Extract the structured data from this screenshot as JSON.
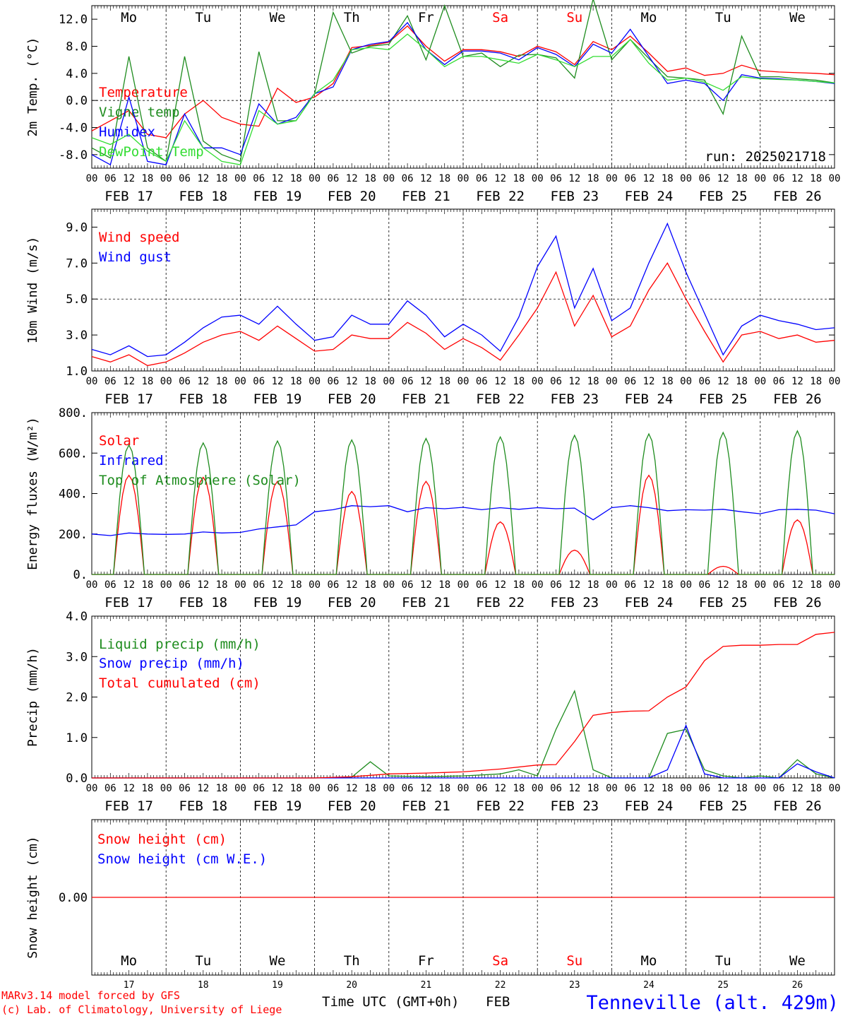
{
  "colors": {
    "red": "#ff0000",
    "green": "#1e8c1e",
    "blue": "#0000ff",
    "lightgreen": "#33dd33",
    "axis": "#000000",
    "grid": "#000000"
  },
  "days": {
    "weekday_labels": [
      "Mo",
      "Tu",
      "We",
      "Th",
      "Fr",
      "Sa",
      "Su",
      "Mo",
      "Tu",
      "We"
    ],
    "weekend_flags": [
      false,
      false,
      false,
      false,
      false,
      true,
      true,
      false,
      false,
      false
    ],
    "date_labels": [
      "FEB 17",
      "FEB 18",
      "FEB 19",
      "FEB 20",
      "FEB 21",
      "FEB 22",
      "FEB 23",
      "FEB 24",
      "FEB 25",
      "FEB 26"
    ],
    "day_numbers": [
      "17",
      "18",
      "19",
      "20",
      "21",
      "22",
      "23",
      "24",
      "25",
      "26"
    ],
    "hour_ticks": [
      "00",
      "06",
      "12",
      "18"
    ],
    "final_hour": "00"
  },
  "footer": {
    "credit_line1": "MARv3.14 model forced by GFS",
    "credit_line2": "(c) Lab. of Climatology, University of Liege",
    "time_label": "Time UTC (GMT+0h)",
    "month_label": "FEB",
    "station": "Tenneville (alt. 429m)"
  },
  "chart_data": [
    {
      "type": "line",
      "ylabel": "2m Temp. (°C)",
      "ylim": [
        -10,
        14
      ],
      "yticks": [
        -8,
        -4,
        0,
        4,
        8,
        12
      ],
      "ytick_labels": [
        "-8.0",
        "-4.0",
        "0.0",
        "4.0",
        "8.0",
        "12.0"
      ],
      "reference_line": 0,
      "annotation": "run: 2025021718",
      "x_unit": "hours since FEB 17 00 UTC",
      "series": [
        {
          "name": "Temperature",
          "color": "red",
          "x": [
            0,
            6,
            12,
            18,
            24,
            30,
            36,
            42,
            48,
            54,
            60,
            66,
            72,
            78,
            84,
            90,
            96,
            102,
            108,
            114,
            120,
            126,
            132,
            138,
            144,
            150,
            156,
            162,
            168,
            174,
            180,
            186,
            192,
            198,
            204,
            210,
            216,
            222,
            228,
            234,
            240
          ],
          "y": [
            -4.5,
            -3,
            -1.5,
            -5,
            -5.5,
            -2,
            0,
            -2.5,
            -3.5,
            -3.8,
            1.8,
            -0.3,
            0.5,
            2.5,
            7.8,
            8.1,
            8.6,
            11,
            8,
            5.8,
            7.5,
            7.5,
            7.2,
            6.5,
            8,
            7.2,
            5.3,
            8.7,
            7.5,
            9.5,
            7,
            4.3,
            4.8,
            3.7,
            4,
            5.2,
            4.4,
            4.2,
            4.1,
            4.0,
            3.8
          ]
        },
        {
          "name": "Vigne temp",
          "color": "green",
          "x": [
            0,
            6,
            12,
            18,
            24,
            30,
            36,
            42,
            48,
            54,
            60,
            66,
            72,
            78,
            84,
            90,
            96,
            102,
            108,
            114,
            120,
            126,
            132,
            138,
            144,
            150,
            156,
            162,
            168,
            174,
            180,
            186,
            192,
            198,
            204,
            210,
            216,
            222,
            228,
            234,
            240
          ],
          "y": [
            -7,
            -8.5,
            6.5,
            -7,
            -9,
            6.5,
            -6,
            -8,
            -9,
            7.2,
            -3,
            -3,
            1,
            13,
            7,
            8,
            8.3,
            12.5,
            6,
            14,
            6.5,
            7,
            5,
            6.7,
            6.8,
            6.3,
            3.3,
            15,
            6,
            9,
            6.2,
            3.5,
            3.3,
            3,
            -2,
            9.5,
            3.5,
            3.5,
            3.2,
            3.0,
            2.6
          ]
        },
        {
          "name": "Humidex",
          "color": "blue",
          "x": [
            0,
            6,
            12,
            18,
            24,
            30,
            36,
            42,
            48,
            54,
            60,
            66,
            72,
            78,
            84,
            90,
            96,
            102,
            108,
            114,
            120,
            126,
            132,
            138,
            144,
            150,
            156,
            162,
            168,
            174,
            180,
            186,
            192,
            198,
            204,
            210,
            216,
            222,
            228,
            234,
            240
          ],
          "y": [
            -8,
            -9.5,
            0.5,
            -9,
            -9.5,
            -2,
            -7,
            -7,
            -8,
            -0.5,
            -3.5,
            -2.5,
            1,
            2,
            7.5,
            8.3,
            8.7,
            11.5,
            7.5,
            5.3,
            7.3,
            7.3,
            7,
            6,
            7.8,
            6.8,
            5,
            8.3,
            7,
            10.5,
            6.5,
            2.5,
            3,
            2.5,
            0,
            3.8,
            3.3,
            3.2,
            3.0,
            2.8,
            2.5
          ]
        },
        {
          "name": "DewPoint Temp",
          "color": "lightgreen",
          "x": [
            0,
            6,
            12,
            18,
            24,
            30,
            36,
            42,
            48,
            54,
            60,
            66,
            72,
            78,
            84,
            90,
            96,
            102,
            108,
            114,
            120,
            126,
            132,
            138,
            144,
            150,
            156,
            162,
            168,
            174,
            180,
            186,
            192,
            198,
            204,
            210,
            216,
            222,
            228,
            234,
            240
          ],
          "y": [
            -5.5,
            -6.5,
            -5,
            -7.5,
            -9,
            -3,
            -7,
            -9,
            -9.5,
            -1.5,
            -3.5,
            -3,
            1,
            3,
            7.5,
            7.8,
            7.5,
            9.8,
            7.5,
            5,
            6.5,
            6.5,
            6,
            5.5,
            6.8,
            6,
            5,
            6.5,
            6.5,
            9,
            5.5,
            3,
            3.3,
            2.7,
            1.5,
            3.5,
            3.2,
            3.1,
            3.0,
            2.8,
            2.6
          ]
        }
      ]
    },
    {
      "type": "line",
      "ylabel": "10m Wind (m/s)",
      "ylim": [
        1,
        10
      ],
      "yticks": [
        1,
        3,
        5,
        7,
        9
      ],
      "ytick_labels": [
        "1.0",
        "3.0",
        "5.0",
        "7.0",
        "9.0"
      ],
      "reference_line": 5,
      "x_unit": "hours since FEB 17 00 UTC",
      "series": [
        {
          "name": "Wind speed",
          "color": "red",
          "x": [
            0,
            6,
            12,
            18,
            24,
            30,
            36,
            42,
            48,
            54,
            60,
            66,
            72,
            78,
            84,
            90,
            96,
            102,
            108,
            114,
            120,
            126,
            132,
            138,
            144,
            150,
            156,
            162,
            168,
            174,
            180,
            186,
            192,
            198,
            204,
            210,
            216,
            222,
            228,
            234,
            240
          ],
          "y": [
            1.8,
            1.5,
            1.9,
            1.3,
            1.5,
            2.0,
            2.6,
            3.0,
            3.2,
            2.7,
            3.5,
            2.8,
            2.1,
            2.2,
            3.0,
            2.8,
            2.8,
            3.7,
            3.1,
            2.2,
            2.8,
            2.3,
            1.6,
            3.0,
            4.5,
            6.5,
            3.5,
            5.2,
            2.9,
            3.5,
            5.5,
            7.0,
            5.0,
            3.2,
            1.5,
            3.0,
            3.2,
            2.8,
            3.0,
            2.6,
            2.7
          ]
        },
        {
          "name": "Wind gust",
          "color": "blue",
          "x": [
            0,
            6,
            12,
            18,
            24,
            30,
            36,
            42,
            48,
            54,
            60,
            66,
            72,
            78,
            84,
            90,
            96,
            102,
            108,
            114,
            120,
            126,
            132,
            138,
            144,
            150,
            156,
            162,
            168,
            174,
            180,
            186,
            192,
            198,
            204,
            210,
            216,
            222,
            228,
            234,
            240
          ],
          "y": [
            2.2,
            1.9,
            2.4,
            1.8,
            1.9,
            2.6,
            3.4,
            4.0,
            4.1,
            3.6,
            4.6,
            3.6,
            2.7,
            2.9,
            4.1,
            3.6,
            3.6,
            4.9,
            4.1,
            2.9,
            3.6,
            3.0,
            2.1,
            4.0,
            6.8,
            8.5,
            4.5,
            6.7,
            3.8,
            4.5,
            7.0,
            9.2,
            6.5,
            4.2,
            1.9,
            3.5,
            4.1,
            3.8,
            3.6,
            3.3,
            3.4
          ]
        }
      ]
    },
    {
      "type": "line",
      "ylabel": "Energy fluxes (W/m²)",
      "ylim": [
        0,
        800
      ],
      "yticks": [
        0,
        200,
        400,
        600,
        800
      ],
      "ytick_labels": [
        "0.",
        "200.",
        "400.",
        "600.",
        "800."
      ],
      "x_unit": "hours since FEB 17 00 UTC",
      "series": [
        {
          "name": "Solar",
          "color": "red",
          "day_peaks": [
            490,
            480,
            460,
            410,
            460,
            260,
            120,
            490,
            40,
            270
          ],
          "sunrise_hour": 7,
          "sunset_hour": 17
        },
        {
          "name": "Infrared",
          "color": "blue",
          "x": [
            0,
            6,
            12,
            18,
            24,
            30,
            36,
            42,
            48,
            54,
            60,
            66,
            72,
            78,
            84,
            90,
            96,
            102,
            108,
            114,
            120,
            126,
            132,
            138,
            144,
            150,
            156,
            162,
            168,
            174,
            180,
            186,
            192,
            198,
            204,
            210,
            216,
            222,
            228,
            234,
            240
          ],
          "y": [
            200,
            192,
            205,
            200,
            198,
            200,
            210,
            205,
            208,
            225,
            235,
            245,
            310,
            320,
            340,
            335,
            340,
            310,
            330,
            325,
            332,
            320,
            330,
            322,
            330,
            325,
            328,
            270,
            330,
            340,
            330,
            315,
            320,
            318,
            322,
            310,
            300,
            320,
            322,
            318,
            300
          ]
        },
        {
          "name": "Top of Atmosphere (Solar)",
          "color": "green",
          "day_peaks": [
            640,
            650,
            660,
            665,
            672,
            680,
            688,
            695,
            702,
            710
          ],
          "sunrise_hour": 7,
          "sunset_hour": 17
        }
      ]
    },
    {
      "type": "line",
      "ylabel": "Precip (mm/h)",
      "ylim": [
        0,
        4
      ],
      "yticks": [
        0,
        1,
        2,
        3,
        4
      ],
      "ytick_labels": [
        "0.0",
        "1.0",
        "2.0",
        "3.0",
        "4.0"
      ],
      "x_unit": "hours since FEB 17 00 UTC",
      "series": [
        {
          "name": "Liquid precip (mm/h)",
          "color": "green",
          "x": [
            0,
            72,
            84,
            90,
            96,
            108,
            120,
            132,
            138,
            144,
            150,
            156,
            162,
            168,
            174,
            180,
            186,
            192,
            198,
            204,
            210,
            216,
            222,
            228,
            234,
            240
          ],
          "y": [
            0,
            0,
            0.02,
            0.4,
            0.05,
            0.03,
            0.05,
            0.1,
            0.2,
            0.05,
            1.2,
            2.15,
            0.2,
            0,
            0,
            0,
            1.1,
            1.2,
            0.2,
            0.05,
            0,
            0.05,
            0,
            0.45,
            0.1,
            0
          ]
        },
        {
          "name": "Snow precip (mm/h)",
          "color": "blue",
          "x": [
            0,
            180,
            186,
            192,
            198,
            204,
            210,
            216,
            222,
            228,
            234,
            240
          ],
          "y": [
            0,
            0,
            0.2,
            1.3,
            0.1,
            0,
            0,
            0,
            0,
            0.35,
            0.15,
            0
          ]
        },
        {
          "name": "Total cumulated (cm)",
          "color": "red",
          "x": [
            0,
            72,
            84,
            96,
            108,
            120,
            132,
            144,
            150,
            156,
            162,
            168,
            174,
            180,
            186,
            192,
            198,
            204,
            210,
            216,
            222,
            228,
            234,
            240
          ],
          "y": [
            0,
            0,
            0.03,
            0.1,
            0.12,
            0.15,
            0.22,
            0.32,
            0.33,
            0.9,
            1.55,
            1.62,
            1.65,
            1.66,
            2.0,
            2.25,
            2.9,
            3.25,
            3.28,
            3.28,
            3.3,
            3.3,
            3.55,
            3.6
          ]
        }
      ]
    },
    {
      "type": "line",
      "ylabel": "Snow height (cm)",
      "ylim": [
        -1,
        1
      ],
      "yticks": [
        0
      ],
      "ytick_labels": [
        "0.00"
      ],
      "x_unit": "hours since FEB 17 00 UTC",
      "series": [
        {
          "name": "Snow height (cm)",
          "color": "red",
          "x": [
            0,
            240
          ],
          "y": [
            0,
            0
          ]
        },
        {
          "name": "Snow height (cm W.E.)",
          "color": "blue",
          "x": [],
          "y": []
        }
      ]
    }
  ]
}
